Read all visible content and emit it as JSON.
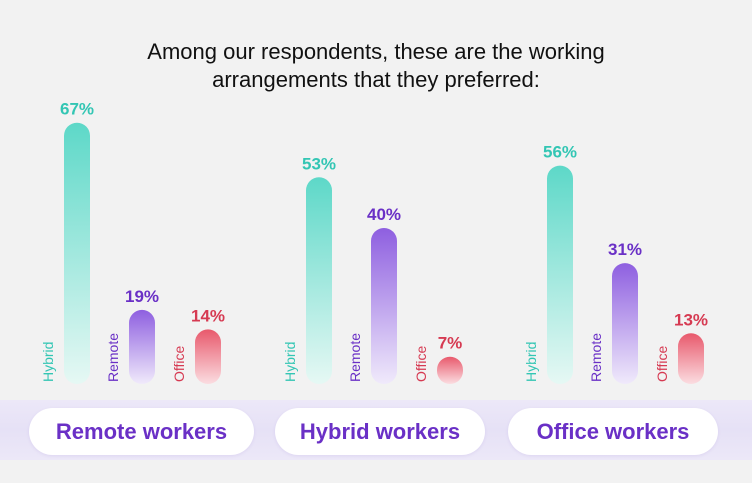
{
  "title_lines": [
    "Among our respondents, these are the working",
    "arrangements that they preferred:"
  ],
  "colors": {
    "hybrid_top": "#5dd8c8",
    "hybrid_bottom": "#e6f8f4",
    "remote_top": "#8e5fe0",
    "remote_bottom": "#f0eafb",
    "office_top": "#e8596c",
    "office_bottom": "#fbdde1",
    "hybrid_label": "#33c6b4",
    "remote_label": "#6a30c6",
    "office_label": "#d63a52",
    "group_label": "#6a30c6"
  },
  "chart_data": {
    "type": "bar",
    "categories": [
      "Remote workers",
      "Hybrid workers",
      "Office workers"
    ],
    "series": [
      {
        "name": "Hybrid",
        "values": [
          67,
          53,
          56
        ],
        "labels": [
          "67%",
          "53%",
          "56%"
        ]
      },
      {
        "name": "Remote",
        "values": [
          19,
          40,
          31
        ],
        "labels": [
          "19%",
          "40%",
          "31%"
        ]
      },
      {
        "name": "Office",
        "values": [
          14,
          7,
          13
        ],
        "labels": [
          "14%",
          "7%",
          "13%"
        ]
      }
    ],
    "unit": "%"
  }
}
